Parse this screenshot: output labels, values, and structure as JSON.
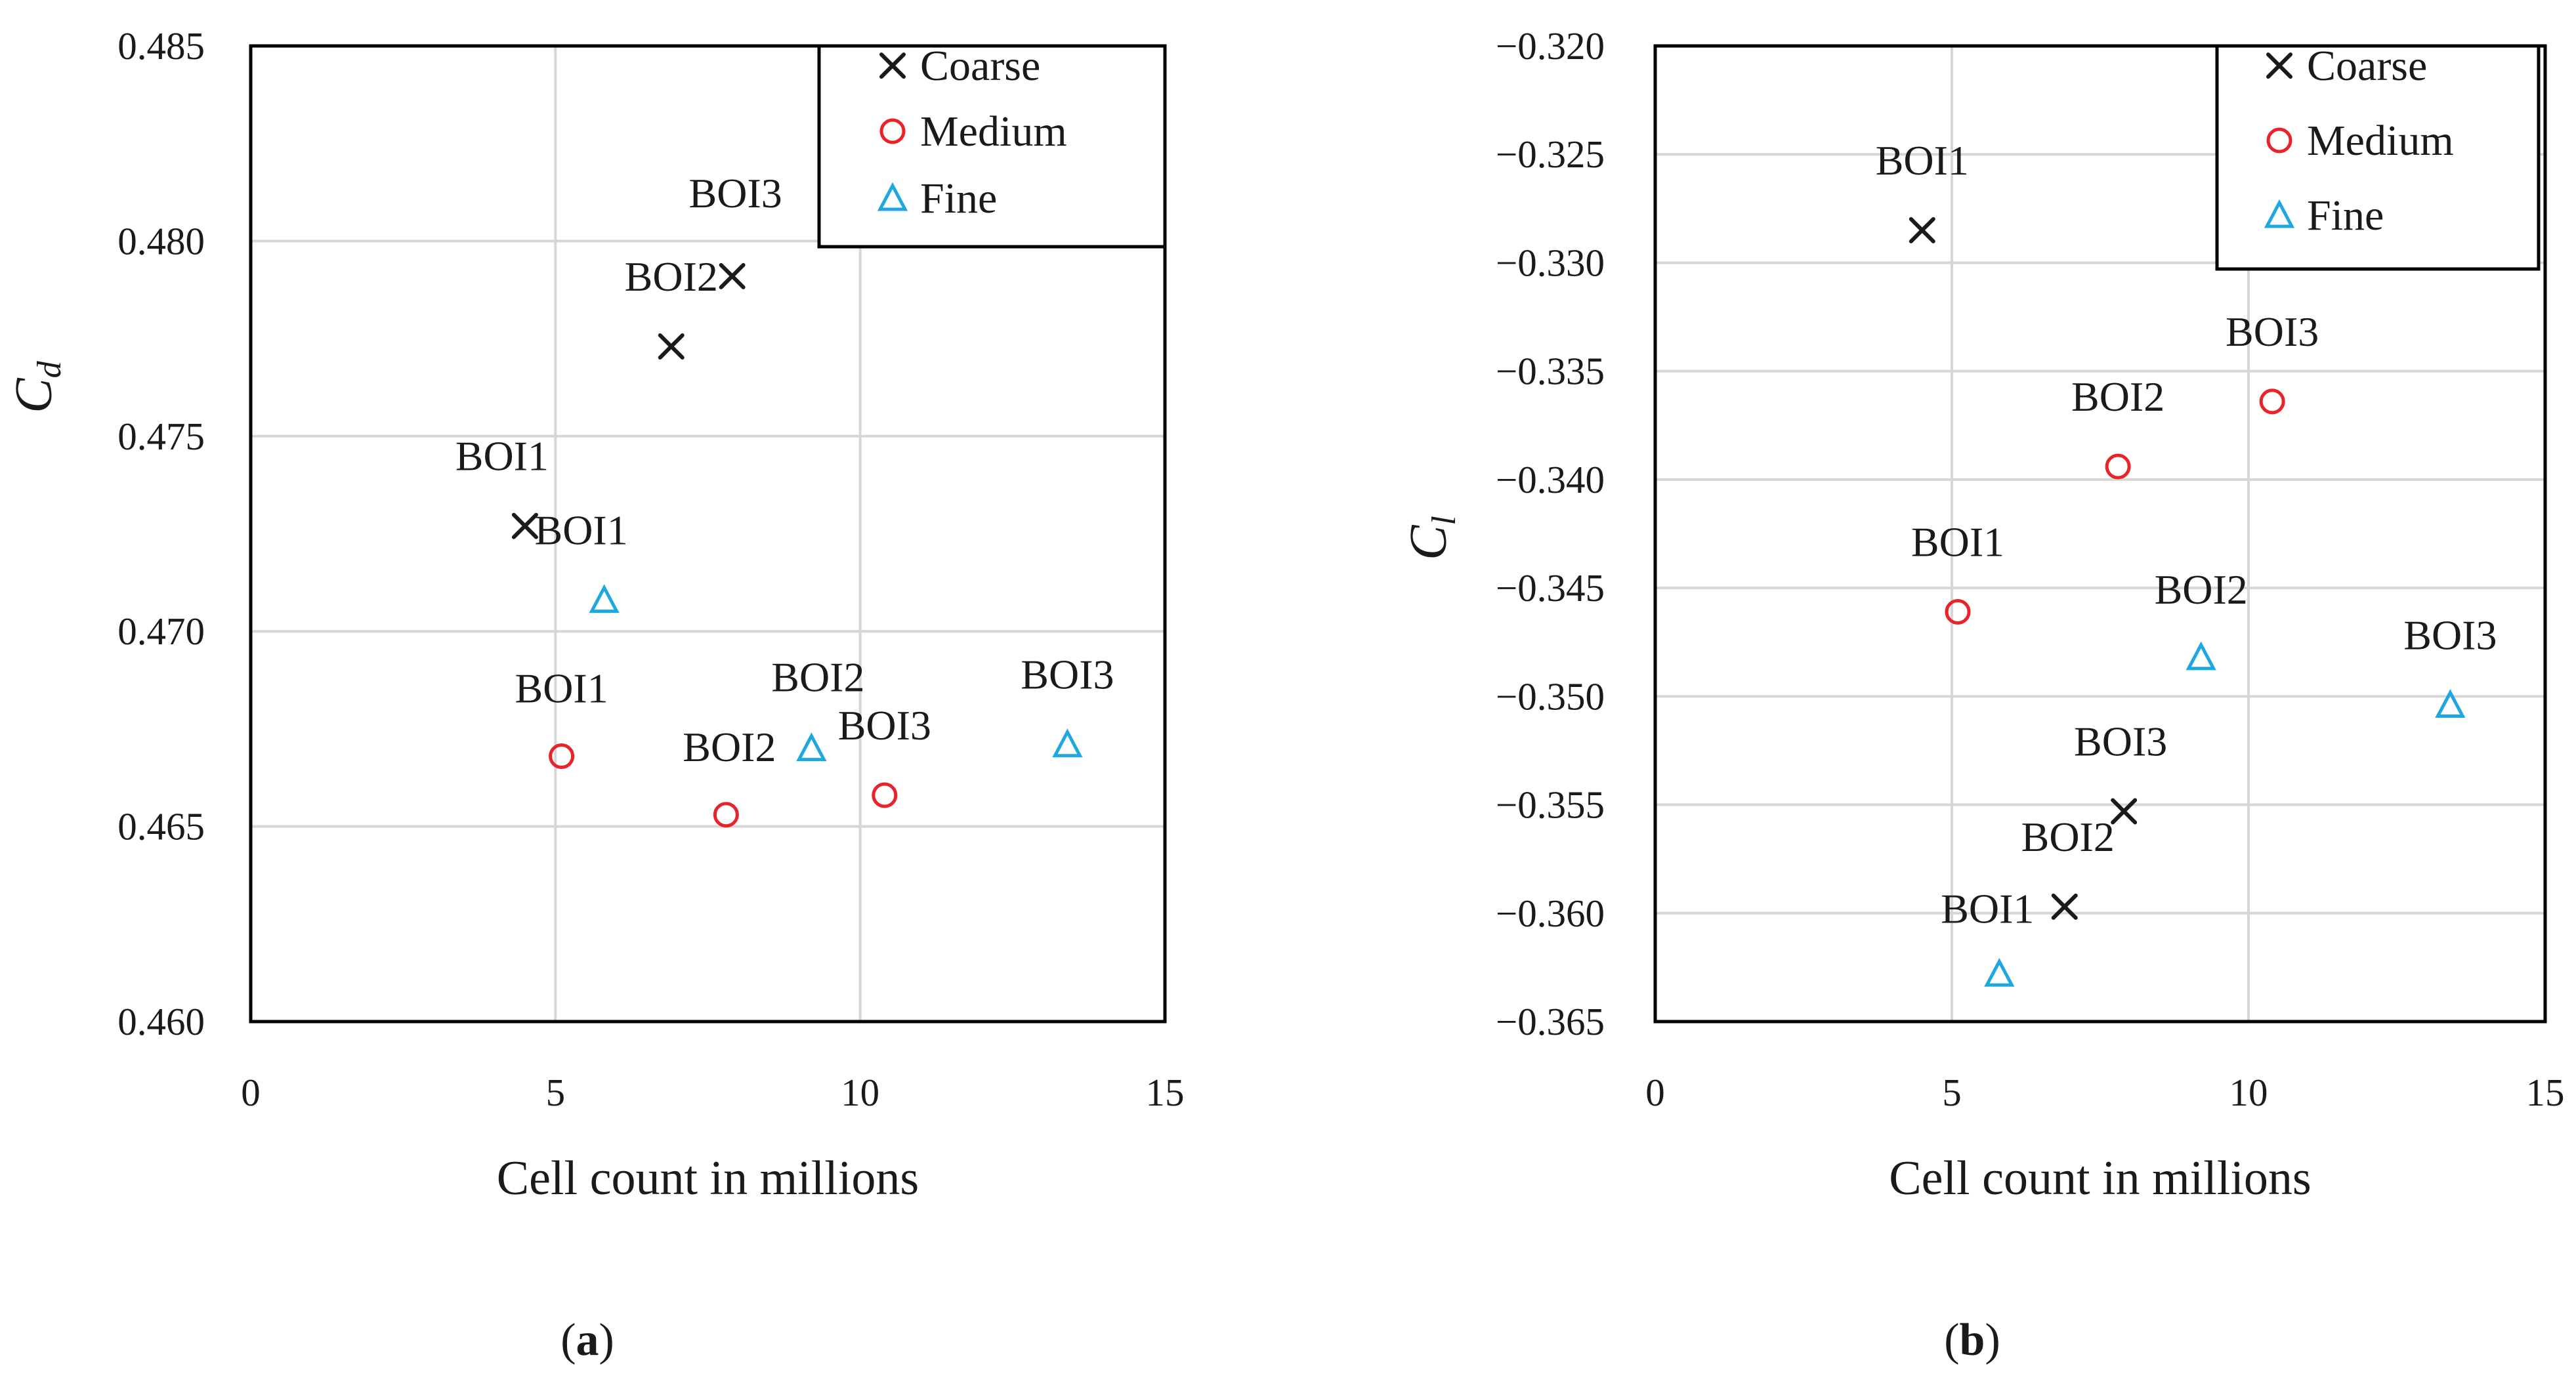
{
  "chart_data": [
    {
      "type": "scatter",
      "panel": "a",
      "caption_letter": "a",
      "caption_open": "(",
      "caption_close": ")",
      "xlabel": "Cell count in millions",
      "ylabel_main": "C",
      "ylabel_sub": "d",
      "xlim": [
        0,
        15
      ],
      "ylim": [
        0.46,
        0.485
      ],
      "xticks": [
        0,
        5,
        10,
        15
      ],
      "xtick_labels": [
        "0",
        "5",
        "10",
        "15"
      ],
      "yticks": [
        0.46,
        0.465,
        0.47,
        0.475,
        0.48,
        0.485
      ],
      "ytick_labels": [
        "0.460",
        "0.465",
        "0.470",
        "0.475",
        "0.480",
        "0.485"
      ],
      "grid": true,
      "legend_position": "top-right",
      "series": [
        {
          "name": "Coarse",
          "marker": "x",
          "color": "#1a1a1a",
          "points": [
            {
              "label": "BOI1",
              "x": 4.5,
              "y": 0.4727
            },
            {
              "label": "BOI2",
              "x": 6.9,
              "y": 0.4773
            },
            {
              "label": "BOI3",
              "x": 7.9,
              "y": 0.4791
            }
          ]
        },
        {
          "name": "Medium",
          "marker": "circle",
          "color": "#e8232a",
          "points": [
            {
              "label": "BOI1",
              "x": 5.1,
              "y": 0.4668
            },
            {
              "label": "BOI2",
              "x": 7.8,
              "y": 0.4653
            },
            {
              "label": "BOI3",
              "x": 10.4,
              "y": 0.4658
            }
          ]
        },
        {
          "name": "Fine",
          "marker": "triangle",
          "color": "#1ea8df",
          "points": [
            {
              "label": "BOI1",
              "x": 5.8,
              "y": 0.4708
            },
            {
              "label": "BOI2",
              "x": 9.2,
              "y": 0.467
            },
            {
              "label": "BOI3",
              "x": 13.4,
              "y": 0.4671
            }
          ]
        }
      ]
    },
    {
      "type": "scatter",
      "panel": "b",
      "caption_letter": "b",
      "caption_open": "(",
      "caption_close": ")",
      "xlabel": "Cell count in millions",
      "ylabel_main": "C",
      "ylabel_sub": "l",
      "xlim": [
        0,
        15
      ],
      "ylim": [
        -0.365,
        -0.32
      ],
      "xticks": [
        0,
        5,
        10,
        15
      ],
      "xtick_labels": [
        "0",
        "5",
        "10",
        "15"
      ],
      "yticks": [
        -0.365,
        -0.36,
        -0.355,
        -0.35,
        -0.345,
        -0.34,
        -0.335,
        -0.33,
        -0.325,
        -0.32
      ],
      "ytick_labels": [
        "−0.365",
        "−0.360",
        "−0.355",
        "−0.350",
        "−0.345",
        "−0.340",
        "−0.335",
        "−0.330",
        "−0.325",
        "−0.320"
      ],
      "grid": true,
      "legend_position": "top-right",
      "series": [
        {
          "name": "Coarse",
          "marker": "x",
          "color": "#1a1a1a",
          "points": [
            {
              "label": "BOI1",
              "x": 4.5,
              "y": -0.3285
            },
            {
              "label": "BOI2",
              "x": 6.9,
              "y": -0.3597
            },
            {
              "label": "BOI3",
              "x": 7.9,
              "y": -0.3553
            }
          ]
        },
        {
          "name": "Medium",
          "marker": "circle",
          "color": "#e8232a",
          "points": [
            {
              "label": "BOI1",
              "x": 5.1,
              "y": -0.3461
            },
            {
              "label": "BOI2",
              "x": 7.8,
              "y": -0.3394
            },
            {
              "label": "BOI3",
              "x": 10.4,
              "y": -0.3364
            }
          ]
        },
        {
          "name": "Fine",
          "marker": "triangle",
          "color": "#1ea8df",
          "points": [
            {
              "label": "BOI1",
              "x": 5.8,
              "y": -0.3628
            },
            {
              "label": "BOI2",
              "x": 9.2,
              "y": -0.3482
            },
            {
              "label": "BOI3",
              "x": 13.4,
              "y": -0.3504
            }
          ]
        }
      ]
    }
  ]
}
